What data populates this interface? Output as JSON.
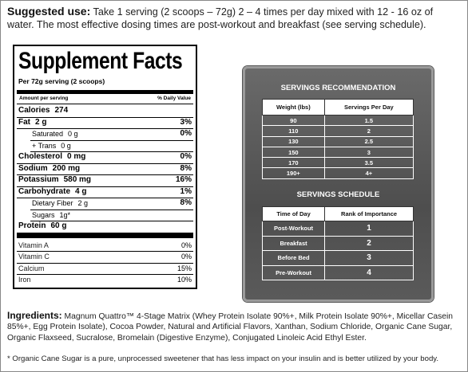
{
  "usage": {
    "label": "Suggested use:",
    "text": "Take 1 serving (2 scoops – 72g) 2 – 4 times per day mixed with 12 - 16 oz of water. The most effective dosing times are post-workout and breakfast (see serving schedule)."
  },
  "facts": {
    "title": "Supplement Facts",
    "serving": "Per 72g serving (2 scoops)",
    "amount_header": "Amount per serving",
    "dv_header": "% Daily Value",
    "nutrients": [
      {
        "name": "Calories",
        "amount": "274"
      },
      {
        "name": "Fat",
        "amount": "2 g",
        "dv": "3%"
      },
      {
        "name": "Saturated",
        "amount": "0 g",
        "dv": "0%"
      },
      {
        "name": "+ Trans",
        "amount": "0 g"
      },
      {
        "name": "Cholesterol",
        "amount": "0 mg",
        "dv": "0%"
      },
      {
        "name": "Sodium",
        "amount": "200 mg",
        "dv": "8%"
      },
      {
        "name": "Potassium",
        "amount": "580 mg",
        "dv": "16%"
      },
      {
        "name": "Carbohydrate",
        "amount": "4 g",
        "dv": "1%"
      },
      {
        "name": "Dietary Fiber",
        "amount": "2 g",
        "dv": "8%"
      },
      {
        "name": "Sugars",
        "amount": "1g*"
      },
      {
        "name": "Protein",
        "amount": "60 g"
      }
    ],
    "vitamins": [
      {
        "name": "Vitamin A",
        "dv": "0%"
      },
      {
        "name": "Vitamin C",
        "dv": "0%"
      },
      {
        "name": "Calcium",
        "dv": "15%"
      },
      {
        "name": "Iron",
        "dv": "10%"
      }
    ]
  },
  "recommendation": {
    "title": "SERVINGS RECOMMENDATION",
    "headers": [
      "Weight (lbs)",
      "Servings Per Day"
    ],
    "rows": [
      [
        "90",
        "1.5"
      ],
      [
        "110",
        "2"
      ],
      [
        "130",
        "2.5"
      ],
      [
        "150",
        "3"
      ],
      [
        "170",
        "3.5"
      ],
      [
        "190+",
        "4+"
      ]
    ]
  },
  "schedule": {
    "title": "SERVINGS SCHEDULE",
    "headers": [
      "Time of Day",
      "Rank of Importance"
    ],
    "rows": [
      [
        "Post-Workout",
        "1"
      ],
      [
        "Breakfast",
        "2"
      ],
      [
        "Before Bed",
        "3"
      ],
      [
        "Pre-Workout",
        "4"
      ]
    ]
  },
  "ingredients": {
    "label": "Ingredients:",
    "text": "Magnum Quattro™ 4-Stage Matrix (Whey Protein Isolate 90%+, Milk Protein Isolate 90%+, Micellar Casein 85%+, Egg Protein Isolate), Cocoa Powder, Natural and Artificial Flavors, Xanthan, Sodium Chloride, Organic Cane Sugar, Organic Flaxseed, Sucralose, Bromelain (Digestive Enzyme), Conjugated Linoleic Acid Ethyl Ester."
  },
  "footnote": "* Organic Cane Sugar is a pure, unprocessed sweetener that has less impact on your insulin and is better utilized by your body."
}
